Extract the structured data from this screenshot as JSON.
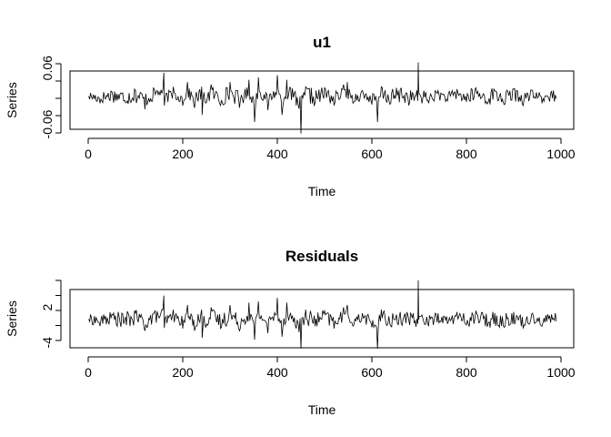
{
  "chart_data": [
    {
      "type": "line",
      "title": "u1",
      "xlabel": "Time",
      "ylabel": "Series",
      "xlim": [
        1,
        1000
      ],
      "ylim": [
        -0.09,
        0.075
      ],
      "x_ticks": [
        0,
        200,
        400,
        600,
        800,
        1000
      ],
      "x_tick_labels": [
        "0",
        "200",
        "400",
        "600",
        "800",
        "1000"
      ],
      "y_ticks": [
        -0.06,
        0.06
      ],
      "y_tick_labels": [
        "-0.06",
        "0.06"
      ],
      "grid": false,
      "series": [
        {
          "color": "#000000",
          "x": [
            1,
            25,
            50,
            75,
            100,
            120,
            140,
            160,
            161,
            180,
            200,
            210,
            225,
            240,
            241,
            260,
            280,
            300,
            320,
            340,
            352,
            360,
            380,
            400,
            410,
            420,
            440,
            450,
            460,
            480,
            500,
            520,
            540,
            548,
            560,
            580,
            600,
            612,
            620,
            640,
            660,
            680,
            697,
            698,
            700,
            720,
            740,
            760,
            780,
            800,
            820,
            840,
            860,
            880,
            900,
            920,
            940,
            960,
            980,
            990
          ],
          "y": [
            0.0,
            -0.015,
            0.01,
            -0.01,
            0.012,
            -0.028,
            0.015,
            0.05,
            -0.02,
            0.02,
            -0.02,
            0.03,
            -0.025,
            0.02,
            -0.04,
            0.025,
            -0.02,
            0.03,
            -0.025,
            0.035,
            -0.055,
            0.04,
            -0.03,
            0.045,
            -0.04,
            0.035,
            -0.02,
            -0.08,
            0.02,
            -0.015,
            0.018,
            -0.02,
            0.025,
            0.03,
            -0.015,
            0.012,
            -0.018,
            -0.055,
            0.02,
            -0.015,
            0.015,
            -0.012,
            -0.01,
            0.072,
            0.005,
            -0.015,
            0.012,
            -0.01,
            0.015,
            -0.012,
            0.018,
            -0.015,
            0.012,
            -0.018,
            0.015,
            -0.02,
            0.012,
            -0.015,
            0.01,
            -0.005
          ]
        }
      ]
    },
    {
      "type": "line",
      "title": "Residuals",
      "xlabel": "Time",
      "ylabel": "Series",
      "xlim": [
        1,
        1000
      ],
      "ylim": [
        -5.5,
        7.2
      ],
      "x_ticks": [
        0,
        200,
        400,
        600,
        800,
        1000
      ],
      "x_tick_labels": [
        "0",
        "200",
        "400",
        "600",
        "800",
        "1000"
      ],
      "y_ticks": [
        -4,
        2
      ],
      "y_tick_labels": [
        "-4",
        "2"
      ],
      "grid": false,
      "series": [
        {
          "color": "#000000",
          "x": [
            1,
            25,
            50,
            75,
            100,
            120,
            140,
            160,
            161,
            180,
            200,
            210,
            225,
            240,
            241,
            260,
            280,
            300,
            320,
            340,
            352,
            360,
            380,
            400,
            410,
            420,
            440,
            450,
            460,
            480,
            500,
            520,
            540,
            548,
            560,
            580,
            600,
            612,
            620,
            640,
            660,
            680,
            697,
            698,
            700,
            720,
            740,
            760,
            780,
            800,
            820,
            840,
            860,
            880,
            900,
            920,
            940,
            960,
            980,
            990
          ],
          "y": [
            0.0,
            -1.2,
            0.8,
            -0.8,
            1.0,
            -2.0,
            1.2,
            4.0,
            -1.5,
            1.6,
            -1.6,
            2.4,
            -2.0,
            1.6,
            -3.2,
            2.0,
            -1.6,
            2.4,
            -2.0,
            2.8,
            -3.5,
            3.0,
            -2.4,
            3.6,
            -3.0,
            2.8,
            -1.6,
            -5.0,
            1.6,
            -1.2,
            1.4,
            -1.6,
            2.0,
            2.4,
            -1.2,
            1.0,
            -1.4,
            -5.0,
            1.6,
            -1.2,
            1.2,
            -1.0,
            -0.8,
            6.6,
            0.4,
            -1.2,
            1.0,
            -0.8,
            1.2,
            -1.0,
            1.4,
            -1.2,
            1.0,
            -1.4,
            1.2,
            -1.6,
            1.0,
            -1.2,
            0.8,
            -0.4
          ]
        }
      ]
    }
  ]
}
